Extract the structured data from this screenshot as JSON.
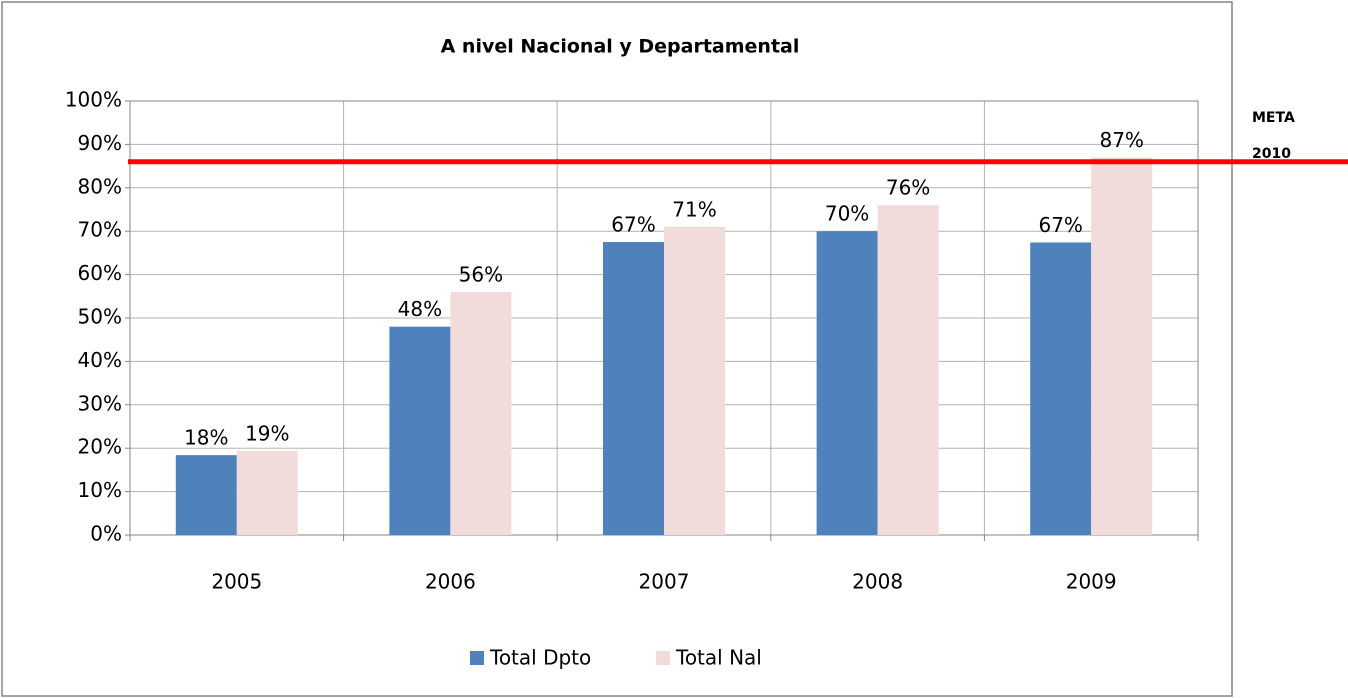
{
  "chart_data": {
    "type": "bar",
    "title": "A nivel Nacional y Departamental",
    "categories": [
      "2005",
      "2006",
      "2007",
      "2008",
      "2009"
    ],
    "series": [
      {
        "name": "Total Dpto",
        "color": "#4f81bd",
        "values": [
          18.4,
          48,
          67.5,
          70,
          67.4
        ],
        "value_labels": [
          "18%",
          "48%",
          "67%",
          "70%",
          "67%"
        ]
      },
      {
        "name": "Total Nal",
        "color": "#f2dcdb",
        "values": [
          19.4,
          56,
          71,
          76,
          87
        ],
        "value_labels": [
          "19%",
          "56%",
          "71%",
          "76%",
          "87%"
        ]
      }
    ],
    "ylim": [
      0,
      100
    ],
    "yticks": [
      {
        "value": 0,
        "label": "0%"
      },
      {
        "value": 10,
        "label": "10%"
      },
      {
        "value": 20,
        "label": "20%"
      },
      {
        "value": 30,
        "label": "30%"
      },
      {
        "value": 40,
        "label": "40%"
      },
      {
        "value": 50,
        "label": "50%"
      },
      {
        "value": 60,
        "label": "60%"
      },
      {
        "value": 70,
        "label": "70%"
      },
      {
        "value": 80,
        "label": "80%"
      },
      {
        "value": 90,
        "label": "90%"
      },
      {
        "value": 100,
        "label": "100%"
      }
    ],
    "grid": true,
    "target": {
      "value": 86,
      "color": "#ff0000",
      "label": [
        "META",
        "2010"
      ]
    },
    "legend": "bottom"
  }
}
